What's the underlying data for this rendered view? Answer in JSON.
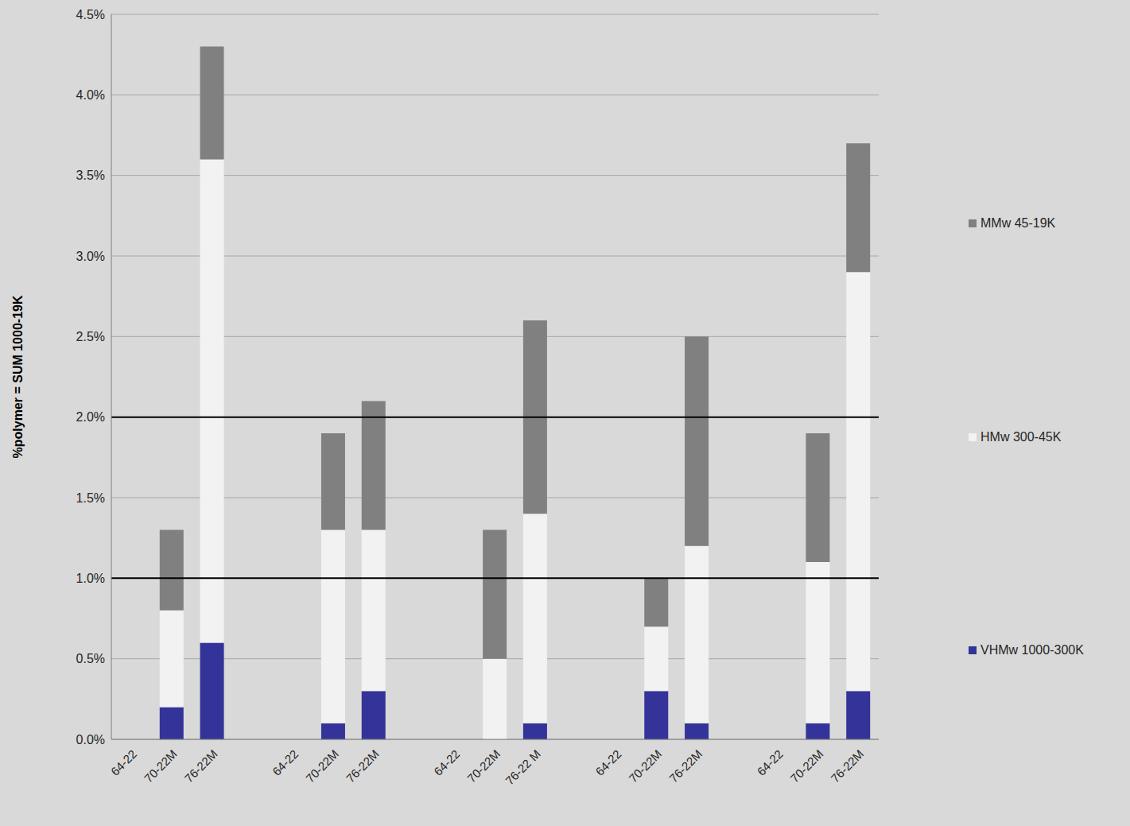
{
  "chart_data": {
    "type": "bar",
    "stacked": true,
    "y_label": "%polymer = SUM 1000-19K",
    "categories": [
      "64-22",
      "70-22M",
      "76-22M",
      null,
      "64-22",
      "70-22M",
      "76-22M",
      null,
      "64-22",
      "70-22M",
      "76-22 M",
      null,
      "64-22",
      "70-22M",
      "76-22M",
      null,
      "64-22",
      "70-22M",
      "76-22M"
    ],
    "series": [
      {
        "name": "VHMw 1000-300K",
        "color": "#333399",
        "values": [
          null,
          0.2,
          0.6,
          null,
          null,
          0.1,
          0.3,
          null,
          null,
          0,
          0.1,
          null,
          null,
          0.3,
          0.1,
          null,
          null,
          0.1,
          0.3
        ]
      },
      {
        "name": "HMw 300-45K",
        "color": "#f2f2f2",
        "values": [
          null,
          0.6,
          3.0,
          null,
          null,
          1.2,
          1.0,
          null,
          null,
          0.5,
          1.3,
          null,
          null,
          0.4,
          1.1,
          null,
          null,
          1.0,
          2.6
        ]
      },
      {
        "name": "MMw 45-19K",
        "color": "#808080",
        "values": [
          null,
          0.5,
          0.7,
          null,
          null,
          0.6,
          0.8,
          null,
          null,
          0.8,
          1.2,
          null,
          null,
          0.3,
          1.3,
          null,
          null,
          0.8,
          0.8
        ]
      }
    ],
    "ylim": [
      0,
      4.5
    ],
    "yticks": [
      {
        "value": 0,
        "label": "0.0%"
      },
      {
        "value": 0.5,
        "label": "0.5%"
      },
      {
        "value": 1,
        "label": "1.0%"
      },
      {
        "value": 1.5,
        "label": "1.5%"
      },
      {
        "value": 2,
        "label": "2.0%"
      },
      {
        "value": 2.5,
        "label": "2.5%"
      },
      {
        "value": 3,
        "label": "3.0%"
      },
      {
        "value": 3.5,
        "label": "3.5%"
      },
      {
        "value": 4,
        "label": "4.0%"
      },
      {
        "value": 4.5,
        "label": "4.5%"
      }
    ],
    "hlines": [
      1,
      2
    ],
    "grid": true,
    "legend": "right"
  }
}
